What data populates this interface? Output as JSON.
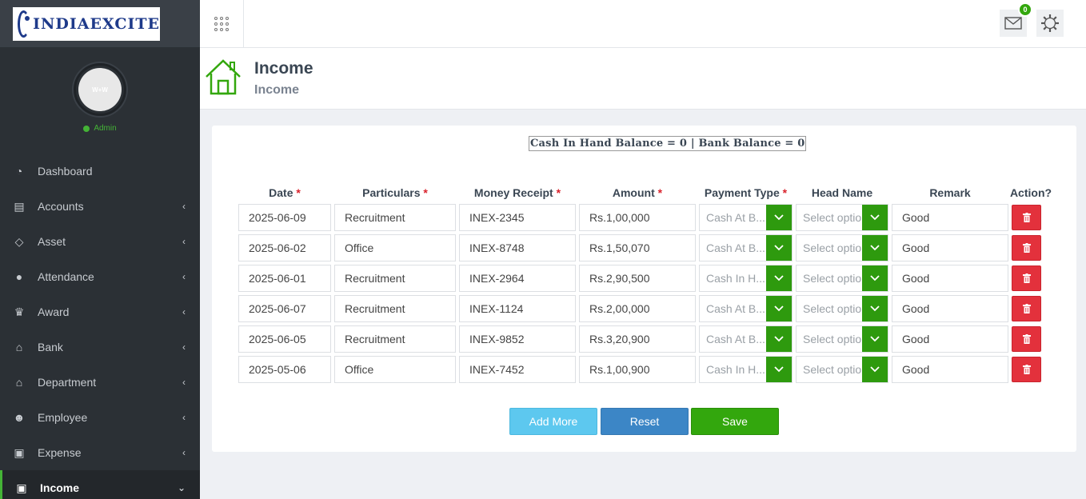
{
  "brand": {
    "logo_text": "INDIAEXCITE"
  },
  "profile": {
    "avatar_text": "W+W",
    "role": "Admin"
  },
  "nav": [
    {
      "label": "Dashboard",
      "icon": "dashboard-icon",
      "chevron": ""
    },
    {
      "label": "Accounts",
      "icon": "briefcase-icon",
      "chevron": "‹"
    },
    {
      "label": "Asset",
      "icon": "diamond-icon",
      "chevron": "‹"
    },
    {
      "label": "Attendance",
      "icon": "user-icon",
      "chevron": "‹"
    },
    {
      "label": "Award",
      "icon": "trophy-icon",
      "chevron": "‹"
    },
    {
      "label": "Bank",
      "icon": "bank-icon",
      "chevron": "‹"
    },
    {
      "label": "Department",
      "icon": "building-icon",
      "chevron": "‹"
    },
    {
      "label": "Employee",
      "icon": "users-icon",
      "chevron": "‹"
    },
    {
      "label": "Expense",
      "icon": "money-icon",
      "chevron": "‹"
    },
    {
      "label": "Income",
      "icon": "money-icon",
      "chevron": "⌄"
    }
  ],
  "topbar": {
    "mail_count": "0"
  },
  "page": {
    "title": "Income",
    "subtitle": "Income"
  },
  "balance_text": "Cash In Hand Balance = 0 | Bank Balance = 0",
  "columns": {
    "date": "Date",
    "particulars": "Particulars",
    "money_receipt": "Money Receipt",
    "amount": "Amount",
    "payment_type": "Payment Type",
    "head_name": "Head Name",
    "remark": "Remark",
    "action": "Action?",
    "required_mark": "*"
  },
  "rows": [
    {
      "date": "2025-06-09",
      "particulars": "Recruitment",
      "receipt": "INEX-2345",
      "amount": "Rs.1,00,000",
      "payment_type": "Cash At B...",
      "head_name": "Select option",
      "remark": "Good"
    },
    {
      "date": "2025-06-02",
      "particulars": "Office",
      "receipt": "INEX-8748",
      "amount": "Rs.1,50,070",
      "payment_type": "Cash At B...",
      "head_name": "Select option",
      "remark": "Good"
    },
    {
      "date": "2025-06-01",
      "particulars": "Recruitment",
      "receipt": "INEX-2964",
      "amount": "Rs.2,90,500",
      "payment_type": "Cash In H...",
      "head_name": "Select option",
      "remark": "Good"
    },
    {
      "date": "2025-06-07",
      "particulars": "Recruitment",
      "receipt": "INEX-1124",
      "amount": "Rs.2,00,000",
      "payment_type": "Cash At B...",
      "head_name": "Select option",
      "remark": "Good"
    },
    {
      "date": "2025-06-05",
      "particulars": "Recruitment",
      "receipt": "INEX-9852",
      "amount": "Rs.3,20,900",
      "payment_type": "Cash At B...",
      "head_name": "Select option",
      "remark": "Good"
    },
    {
      "date": "2025-05-06",
      "particulars": "Office",
      "receipt": "INEX-7452",
      "amount": "Rs.1,00,900",
      "payment_type": "Cash In H...",
      "head_name": "Select option",
      "remark": "Good"
    }
  ],
  "buttons": {
    "add_more": "Add More",
    "reset": "Reset",
    "save": "Save"
  },
  "colors": {
    "accent_green": "#33a70d",
    "danger_red": "#e3313c",
    "info_blue": "#5dc8ef",
    "primary_blue": "#3c86c6",
    "sidebar_bg": "#2b3035"
  }
}
